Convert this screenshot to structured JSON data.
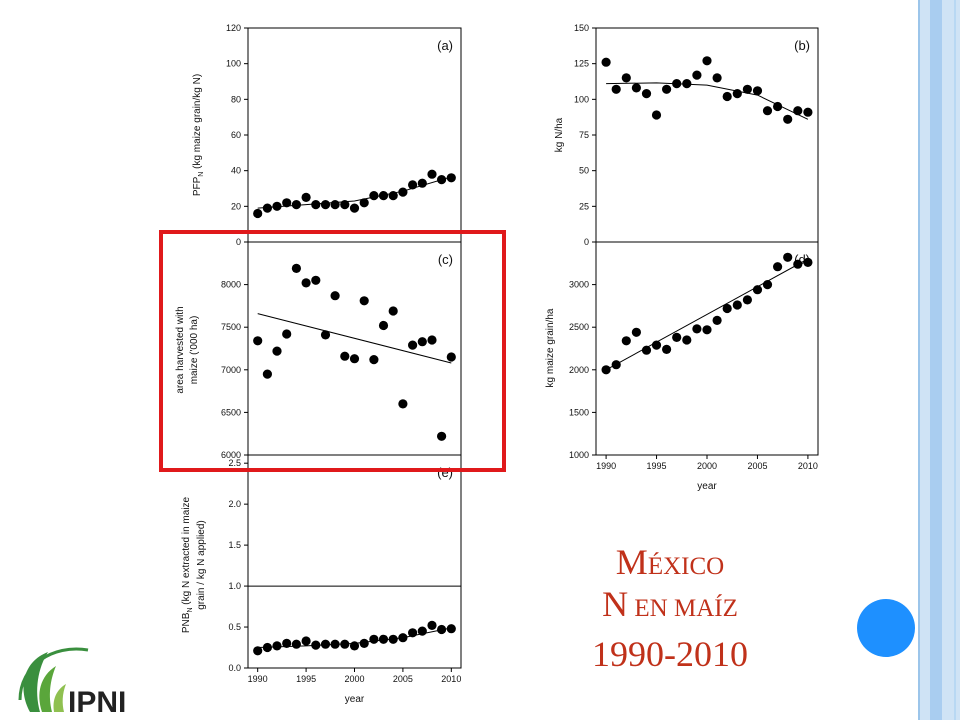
{
  "slide": {
    "title_line1_initial": "M",
    "title_line1_rest": "ÉXICO",
    "title_line2_initial": "N",
    "title_line2_rest": " EN MAÍZ",
    "title_line3": "1990-2010",
    "logo_text": "IPNI"
  },
  "colors": {
    "title": "#c0311a",
    "highlight_box": "#e0191b",
    "sidebar_light": "#cfe3f5",
    "sidebar_mid": "#a9cdf0",
    "accent_circle": "#1e90ff",
    "logo_green": "#3a8f3e",
    "marker": "#000000"
  },
  "chart_data": [
    {
      "panel": "(a)",
      "type": "scatter",
      "ylabel_main": "PFP",
      "ylabel_sub": "N",
      "ylabel_rest": " (kg maize grain/kg N)",
      "ylim": [
        0,
        120
      ],
      "yticks": [
        0,
        20,
        40,
        60,
        80,
        100,
        120
      ],
      "x": [
        1990,
        1991,
        1992,
        1993,
        1994,
        1995,
        1996,
        1997,
        1998,
        1999,
        2000,
        2001,
        2002,
        2003,
        2004,
        2005,
        2006,
        2007,
        2008,
        2009,
        2010
      ],
      "values": [
        16,
        19,
        20,
        22,
        21,
        25,
        21,
        21,
        21,
        21,
        19,
        22,
        26,
        26,
        26,
        28,
        32,
        33,
        38,
        35,
        36
      ],
      "trend": "curve",
      "trend_points": [
        [
          1990,
          19
        ],
        [
          1995,
          21
        ],
        [
          2000,
          23
        ],
        [
          2005,
          28.5
        ],
        [
          2010,
          36.5
        ]
      ]
    },
    {
      "panel": "(b)",
      "type": "scatter",
      "ylabel": "kg N/ha",
      "ylim": [
        0,
        150
      ],
      "yticks": [
        0,
        25,
        50,
        75,
        100,
        125,
        150
      ],
      "x": [
        1990,
        1991,
        1992,
        1993,
        1994,
        1995,
        1996,
        1997,
        1998,
        1999,
        2000,
        2001,
        2002,
        2003,
        2004,
        2005,
        2006,
        2007,
        2008,
        2009,
        2010
      ],
      "values": [
        126,
        107,
        115,
        108,
        104,
        89,
        107,
        111,
        111,
        117,
        127,
        115,
        102,
        104,
        107,
        106,
        92,
        95,
        86,
        92,
        91
      ],
      "trend": "curve",
      "trend_points": [
        [
          1990,
          111
        ],
        [
          1995,
          111.5
        ],
        [
          2000,
          110
        ],
        [
          2005,
          103
        ],
        [
          2010,
          86
        ]
      ]
    },
    {
      "panel": "(c)",
      "type": "scatter",
      "ylabel_line1": "area harvested with",
      "ylabel_line2": "maize ('000 ha)",
      "ylim": [
        6000,
        8500
      ],
      "yticks": [
        6000,
        6500,
        7000,
        7500,
        8000
      ],
      "x": [
        1990,
        1991,
        1992,
        1993,
        1994,
        1995,
        1996,
        1997,
        1998,
        1999,
        2000,
        2001,
        2002,
        2003,
        2004,
        2005,
        2006,
        2007,
        2008,
        2009,
        2010
      ],
      "values": [
        7340,
        6950,
        7220,
        7420,
        8190,
        8020,
        8050,
        7410,
        7870,
        7160,
        7130,
        7810,
        7120,
        7520,
        7690,
        6600,
        7290,
        7330,
        7350,
        6220,
        7150
      ],
      "trend": "line",
      "trend_points": [
        [
          1990,
          7660
        ],
        [
          2010,
          7080
        ]
      ]
    },
    {
      "panel": "(d)",
      "type": "scatter",
      "ylabel": "kg maize grain/ha",
      "xlabel": "year",
      "ylim": [
        1000,
        3500
      ],
      "yticks": [
        1000,
        1500,
        2000,
        2500,
        3000
      ],
      "xticks": [
        1990,
        1995,
        2000,
        2005,
        2010
      ],
      "x": [
        1990,
        1991,
        1992,
        1993,
        1994,
        1995,
        1996,
        1997,
        1998,
        1999,
        2000,
        2001,
        2002,
        2003,
        2004,
        2005,
        2006,
        2007,
        2008,
        2009,
        2010
      ],
      "values": [
        2000,
        2060,
        2340,
        2440,
        2230,
        2290,
        2240,
        2380,
        2350,
        2480,
        2470,
        2580,
        2720,
        2760,
        2820,
        2940,
        3000,
        3210,
        3320,
        3240,
        3260
      ],
      "trend": "line",
      "trend_points": [
        [
          1990,
          2000
        ],
        [
          2010,
          3300
        ]
      ]
    },
    {
      "panel": "(e)",
      "type": "scatter",
      "ylabel_main": "PNB",
      "ylabel_sub": "N",
      "ylabel_rest": " (kg N extracted in maize",
      "ylabel_line2": "grain / kg N applied)",
      "xlabel": "year",
      "ylim": [
        0,
        2.6
      ],
      "yticks": [
        "0.0",
        "0.5",
        "1.0",
        "1.5",
        "2.0",
        "2.5"
      ],
      "reference_line": 1.0,
      "xticks": [
        1990,
        1995,
        2000,
        2005,
        2010
      ],
      "x": [
        1990,
        1991,
        1992,
        1993,
        1994,
        1995,
        1996,
        1997,
        1998,
        1999,
        2000,
        2001,
        2002,
        2003,
        2004,
        2005,
        2006,
        2007,
        2008,
        2009,
        2010
      ],
      "values": [
        0.21,
        0.25,
        0.27,
        0.3,
        0.29,
        0.33,
        0.28,
        0.29,
        0.29,
        0.29,
        0.27,
        0.3,
        0.35,
        0.35,
        0.35,
        0.37,
        0.43,
        0.45,
        0.52,
        0.47,
        0.48
      ],
      "trend": "curve",
      "trend_points": [
        [
          1990,
          0.25
        ],
        [
          1995,
          0.27
        ],
        [
          2000,
          0.3
        ],
        [
          2005,
          0.37
        ],
        [
          2010,
          0.49
        ]
      ]
    }
  ]
}
